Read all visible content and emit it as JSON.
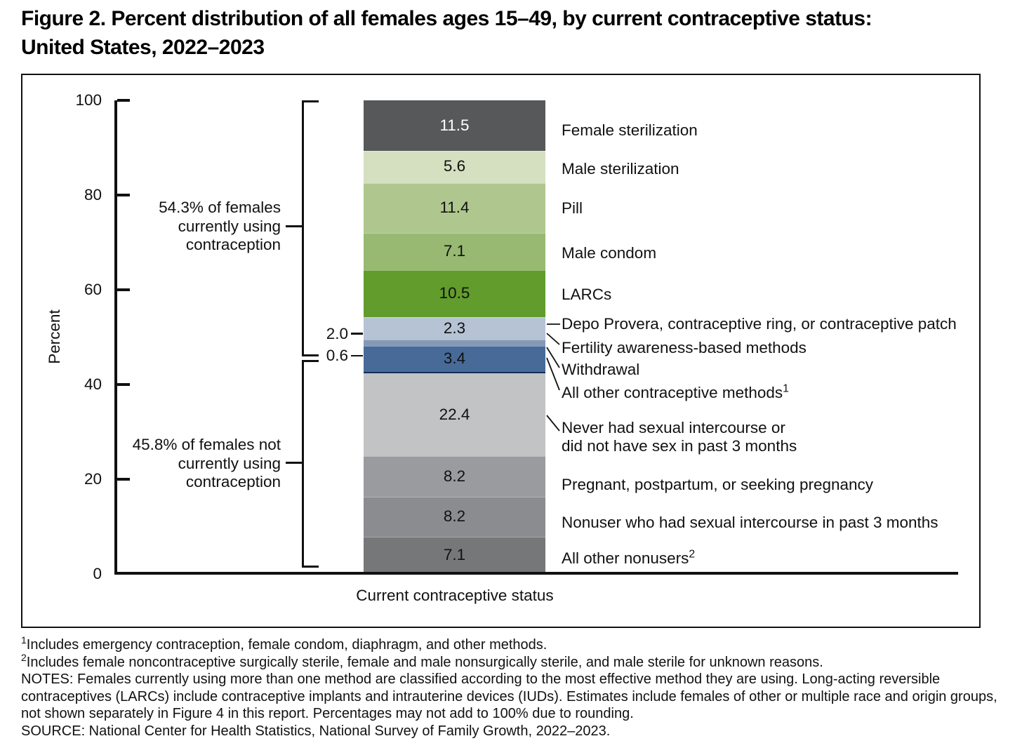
{
  "title": "Figure 2. Percent distribution of all females ages 15–49, by current contraceptive status:\nUnited States, 2022–2023",
  "chart_data": {
    "type": "bar",
    "stacked": true,
    "title": "Percent distribution of all females ages 15–49, by current contraceptive status: United States, 2022–2023",
    "xlabel": "Current contraceptive status",
    "ylabel": "Percent",
    "ylim": [
      0,
      100
    ],
    "yticks": [
      0,
      20,
      40,
      60,
      80,
      100
    ],
    "segments": [
      {
        "label": "Female sterilization",
        "value": 11.5,
        "value_label": "11.5",
        "color": "#56585A",
        "value_position": "inside",
        "value_color": "#FFFFFF"
      },
      {
        "label": "Male sterilization",
        "value": 5.6,
        "value_label": "5.6",
        "color": "#D4E0BF",
        "value_position": "inside"
      },
      {
        "label": "Pill",
        "value": 11.4,
        "value_label": "11.4",
        "color": "#AFC78E",
        "value_position": "inside"
      },
      {
        "label": "Male condom",
        "value": 7.1,
        "value_label": "7.1",
        "color": "#98B971",
        "value_position": "inside"
      },
      {
        "label": "LARCs",
        "value": 10.5,
        "value_label": "10.5",
        "color": "#629C2C",
        "value_position": "inside"
      },
      {
        "label": "Depo Provera, contraceptive ring, or contraceptive patch",
        "value": 2.3,
        "value_label": "2.3",
        "color": "#B6C3D4",
        "value_position": "inside"
      },
      {
        "label": "Fertility awareness-based methods",
        "value": 2.0,
        "value_label": "2.0",
        "color": "#8499B6",
        "value_position": "outside-left"
      },
      {
        "label": "Withdrawal",
        "value": 3.4,
        "value_label": "3.4",
        "color": "#486A99",
        "value_position": "inside"
      },
      {
        "label": "All other contraceptive methods",
        "label_sup": "1",
        "value": 0.6,
        "value_label": "0.6",
        "color": "#152F58",
        "value_position": "outside-left"
      },
      {
        "label": "Never had sexual intercourse or\ndid not have sex in past 3 months",
        "value": 22.4,
        "value_label": "22.4",
        "color": "#C1C3C5",
        "value_position": "inside"
      },
      {
        "label": "Pregnant, postpartum, or seeking pregnancy",
        "value": 8.2,
        "value_label": "8.2",
        "color": "#999B9E",
        "value_position": "inside"
      },
      {
        "label": "Nonuser who had sexual intercourse in past 3 months",
        "value": 8.2,
        "value_label": "8.2",
        "color": "#8A8C8F",
        "value_position": "inside"
      },
      {
        "label": "All other nonusers",
        "label_sup": "2",
        "value": 7.1,
        "value_label": "7.1",
        "color": "#757779",
        "value_position": "inside"
      }
    ],
    "groups": [
      {
        "text": "54.3% of females\ncurrently using\ncontraception",
        "value": 54.3
      },
      {
        "text": "45.8% of females not\ncurrently using\ncontraception",
        "value": 45.8
      }
    ]
  },
  "footnotes": {
    "fn1_marker": "1",
    "fn1": "Includes emergency contraception, female condom, diaphragm, and other methods.",
    "fn2_marker": "2",
    "fn2": "Includes female noncontraceptive surgically sterile, female and male nonsurgically sterile, and male sterile for unknown reasons.",
    "notes": "NOTES: Females currently using more than one method are classified according to the most effective method they are using. Long-acting reversible contraceptives (LARCs) include contraceptive implants and intrauterine devices (IUDs). Estimates include females of other or multiple race and origin groups, not shown separately in Figure 4 in this report. Percentages may not add to 100% due to rounding.",
    "source": "SOURCE: National Center for Health Statistics, National Survey of Family Growth, 2022–2023."
  }
}
